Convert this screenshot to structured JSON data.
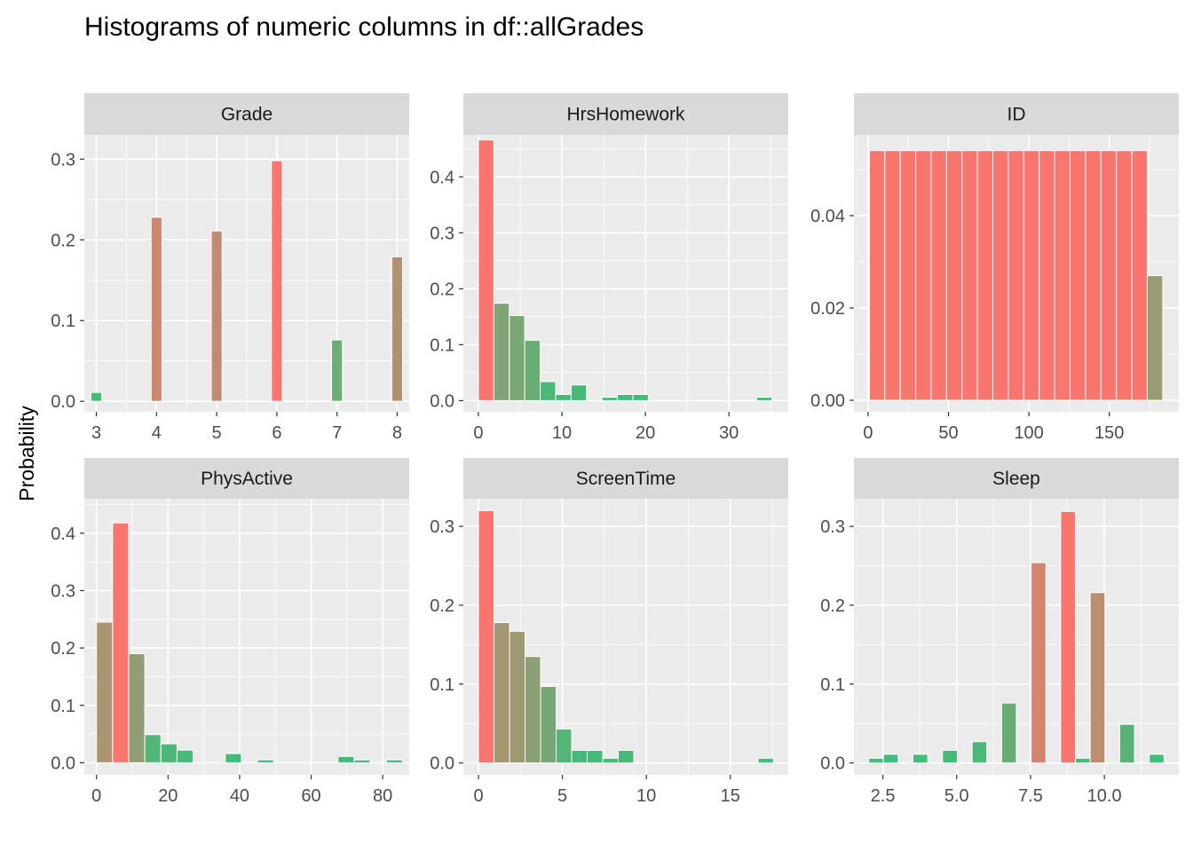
{
  "chart_data": {
    "type": "bar",
    "title": "Histograms of numeric columns in df::allGrades",
    "ylabel": "Probability",
    "xlabel": "",
    "grid": true,
    "legend": "none",
    "colors": {
      "high": "#F8766D",
      "low": "#3CBE79",
      "panel_bg": "#EBEBEB",
      "strip_bg": "#D9D9D9",
      "grid": "#FFFFFF"
    },
    "panels": [
      {
        "name": "Grade",
        "xlim": [
          2.8,
          8.2
        ],
        "ylim": [
          -0.013,
          0.33
        ],
        "xticks": [
          3,
          4,
          5,
          6,
          7,
          8
        ],
        "xtick_labels": [
          "3",
          "4",
          "5",
          "6",
          "7",
          "8"
        ],
        "yticks": [
          0,
          0.1,
          0.2,
          0.3
        ],
        "ytick_labels": [
          "0.0",
          "0.1",
          "0.2",
          "0.3"
        ],
        "binwidth": 0.18,
        "x": [
          3,
          4,
          5,
          6,
          7,
          8
        ],
        "values": [
          0.011,
          0.228,
          0.211,
          0.298,
          0.076,
          0.179
        ]
      },
      {
        "name": "HrsHomework",
        "xlim": [
          -1.8,
          37.1
        ],
        "ylim": [
          -0.02,
          0.475
        ],
        "xticks": [
          0,
          10,
          20,
          30
        ],
        "xtick_labels": [
          "0",
          "10",
          "20",
          "30"
        ],
        "yticks": [
          0,
          0.1,
          0.2,
          0.3,
          0.4
        ],
        "ytick_labels": [
          "0.0",
          "0.1",
          "0.2",
          "0.3",
          "0.4"
        ],
        "binwidth": 1.85,
        "x": [
          0.925,
          2.775,
          4.625,
          6.475,
          8.325,
          10.175,
          12.025,
          13.875,
          15.725,
          17.575,
          19.425,
          21.275,
          23.125,
          24.975,
          26.825,
          28.675,
          30.525,
          32.375,
          34.225
        ],
        "values": [
          0.466,
          0.174,
          0.152,
          0.108,
          0.034,
          0.011,
          0.028,
          0,
          0.006,
          0.011,
          0.011,
          0,
          0,
          0,
          0,
          0,
          0,
          0,
          0.006
        ]
      },
      {
        "name": "ID",
        "xlim": [
          -8.8,
          193.2
        ],
        "ylim": [
          -0.0025,
          0.0575
        ],
        "xticks": [
          0,
          50,
          100,
          150
        ],
        "xtick_labels": [
          "0",
          "50",
          "100",
          "150"
        ],
        "yticks": [
          0,
          0.02,
          0.04
        ],
        "ytick_labels": [
          "0.00",
          "0.02",
          "0.04"
        ],
        "binwidth": 9.6,
        "x": [
          5.6,
          15.2,
          24.8,
          34.4,
          44,
          53.6,
          63.2,
          72.8,
          82.4,
          92,
          101.6,
          111.2,
          120.8,
          130.4,
          140,
          149.6,
          159.2,
          168.8,
          178.4
        ],
        "values": [
          0.0541,
          0.0541,
          0.0541,
          0.0541,
          0.0541,
          0.0541,
          0.0541,
          0.0541,
          0.0541,
          0.0541,
          0.0541,
          0.0541,
          0.0541,
          0.0541,
          0.0541,
          0.0541,
          0.0541,
          0.0541,
          0.027
        ]
      },
      {
        "name": "PhysActive",
        "xlim": [
          -3.4,
          87.4
        ],
        "ylim": [
          -0.021,
          0.46
        ],
        "xticks": [
          0,
          20,
          40,
          60,
          80
        ],
        "xtick_labels": [
          "0",
          "20",
          "40",
          "60",
          "80"
        ],
        "yticks": [
          0,
          0.1,
          0.2,
          0.3,
          0.4
        ],
        "ytick_labels": [
          "0.0",
          "0.1",
          "0.2",
          "0.3",
          "0.4"
        ],
        "binwidth": 4.5,
        "x": [
          2.25,
          6.75,
          11.25,
          15.75,
          20.25,
          24.75,
          29.25,
          33.75,
          38.25,
          42.75,
          47.25,
          51.75,
          56.25,
          60.75,
          65.25,
          69.75,
          74.25,
          78.75,
          83.25
        ],
        "values": [
          0.245,
          0.418,
          0.19,
          0.049,
          0.033,
          0.022,
          0,
          0,
          0.016,
          0,
          0.005,
          0,
          0,
          0,
          0,
          0.011,
          0.005,
          0,
          0.005
        ]
      },
      {
        "name": "ScreenTime",
        "xlim": [
          -0.9,
          18.45
        ],
        "ylim": [
          -0.015,
          0.335
        ],
        "xticks": [
          0,
          5,
          10,
          15
        ],
        "xtick_labels": [
          "0",
          "5",
          "10",
          "15"
        ],
        "yticks": [
          0,
          0.1,
          0.2,
          0.3
        ],
        "ytick_labels": [
          "0.0",
          "0.1",
          "0.2",
          "0.3"
        ],
        "binwidth": 0.925,
        "x": [
          0.4625,
          1.3875,
          2.3125,
          3.2375,
          4.1625,
          5.0875,
          6.0125,
          6.9375,
          7.8625,
          8.7875,
          9.7125,
          10.6375,
          11.5625,
          12.4875,
          13.4125,
          14.3375,
          15.2625,
          16.1875,
          17.1125
        ],
        "values": [
          0.32,
          0.178,
          0.167,
          0.135,
          0.097,
          0.043,
          0.016,
          0.016,
          0.006,
          0.016,
          0,
          0,
          0,
          0,
          0,
          0,
          0,
          0,
          0.006
        ]
      },
      {
        "name": "Sleep",
        "xlim": [
          1.52,
          12.52
        ],
        "ylim": [
          -0.015,
          0.335
        ],
        "xticks": [
          2.5,
          5,
          7.5,
          10
        ],
        "xtick_labels": [
          "2.5",
          "5.0",
          "7.5",
          "10.0"
        ],
        "yticks": [
          0,
          0.1,
          0.2,
          0.3
        ],
        "ytick_labels": [
          "0.0",
          "0.1",
          "0.2",
          "0.3"
        ],
        "binwidth": 0.5,
        "x": [
          2.27,
          2.77,
          3.27,
          3.77,
          4.27,
          4.77,
          5.27,
          5.77,
          6.27,
          6.77,
          7.27,
          7.77,
          8.27,
          8.77,
          9.27,
          9.77,
          10.27,
          10.77,
          11.27,
          11.77
        ],
        "values": [
          0.006,
          0.011,
          0,
          0.011,
          0,
          0.016,
          0,
          0.027,
          0,
          0.076,
          0,
          0.254,
          0,
          0.319,
          0.006,
          0.216,
          0,
          0.049,
          0,
          0.011
        ]
      }
    ]
  }
}
